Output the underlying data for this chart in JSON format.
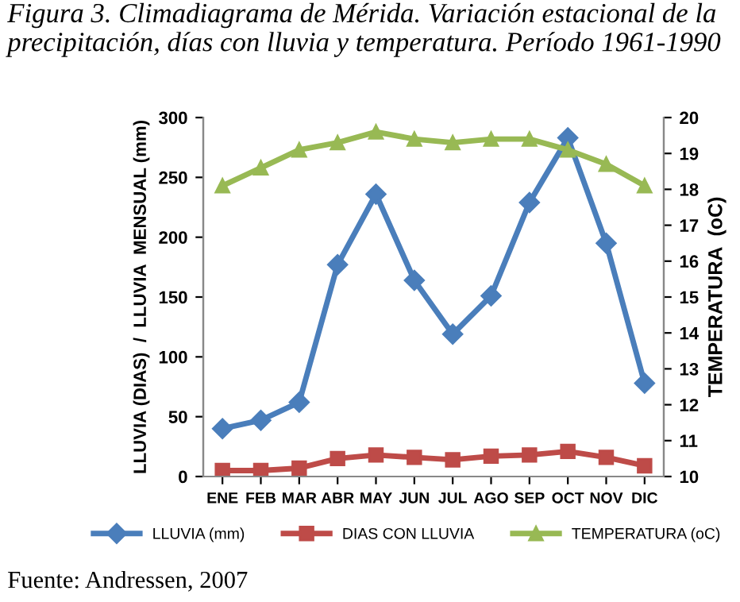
{
  "chart_data": {
    "type": "line",
    "title": "Figura 3. Climadiagrama de Mérida. Variación estacional de la precipitación, días con lluvia y temperatura. Período 1961-1990",
    "categories": [
      "ENE",
      "FEB",
      "MAR",
      "ABR",
      "MAY",
      "JUN",
      "JUL",
      "AGO",
      "SEP",
      "OCT",
      "NOV",
      "DIC"
    ],
    "ylabel": "LLUVIA (DIAS)  /  LLUVIA  MENSUAL (mm)",
    "y2label": "TEMPERATURA  (oC)",
    "ylim": [
      0,
      300
    ],
    "yticks": [
      0,
      50,
      100,
      150,
      200,
      250,
      300
    ],
    "y2lim": [
      10,
      20
    ],
    "y2ticks": [
      10,
      11,
      12,
      13,
      14,
      15,
      16,
      17,
      18,
      19,
      20
    ],
    "series": [
      {
        "name": "LLUVIA (mm)",
        "color": "#4a7ebb",
        "marker": "diamond",
        "values": [
          40,
          47,
          62,
          177,
          236,
          164,
          119,
          151,
          229,
          283,
          195,
          78
        ]
      },
      {
        "name": "DIAS CON LLUVIA",
        "color": "#be4b48",
        "marker": "square",
        "values": [
          5,
          5,
          7,
          15,
          18,
          16,
          14,
          17,
          18,
          21,
          16,
          9
        ]
      },
      {
        "name": "TEMPERATURA (oC)",
        "color": "#98b954",
        "marker": "triangle",
        "axis": "y2",
        "values": [
          18.1,
          18.6,
          19.1,
          19.3,
          19.6,
          19.4,
          19.3,
          19.4,
          19.4,
          19.1,
          18.7,
          18.1
        ]
      }
    ],
    "legend": "bottom",
    "grid": false,
    "annotations": [
      "Fuente: Andressen, 2007"
    ]
  }
}
